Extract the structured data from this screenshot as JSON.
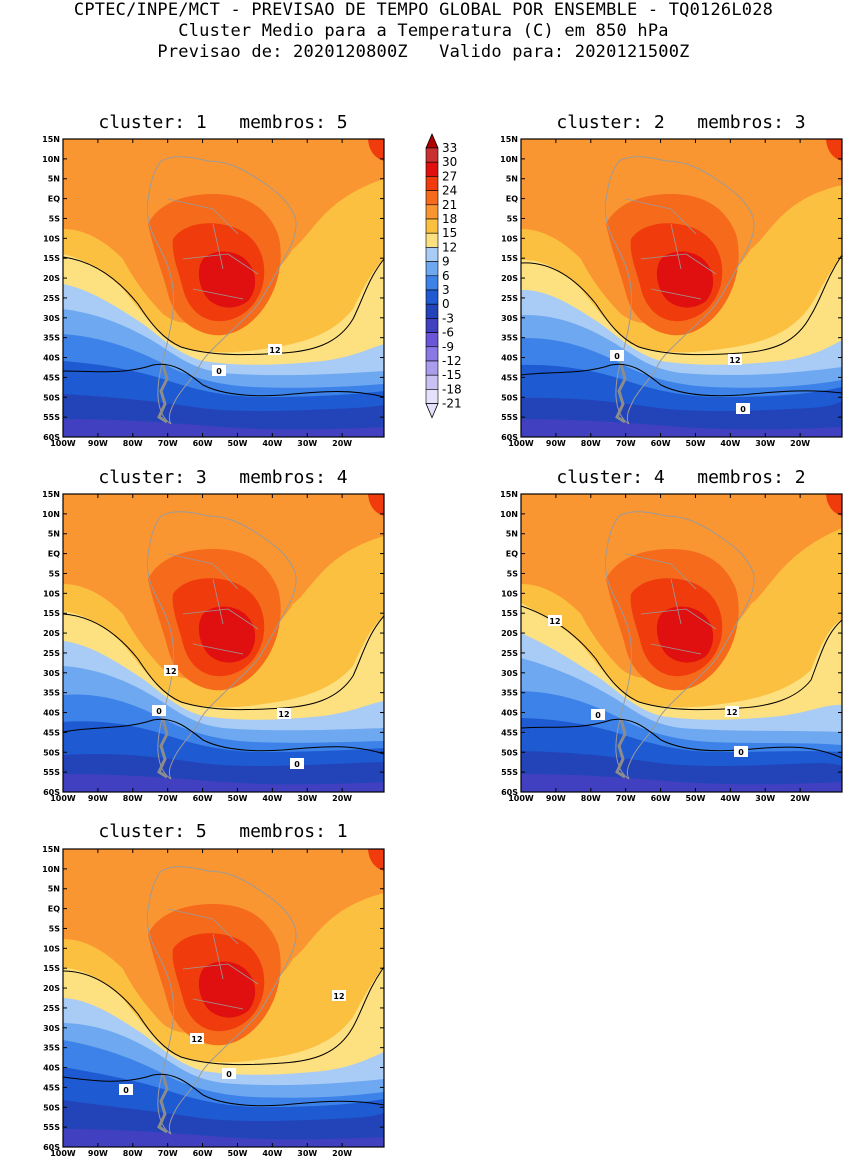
{
  "header": {
    "line1": "CPTEC/INPE/MCT - PREVISAO DE TEMPO GLOBAL POR ENSEMBLE - TQ0126L028",
    "line2": "Cluster Medio para a Temperatura (C) em 850 hPa",
    "line3": "Previsao de: 2020120800Z   Valido para: 2020121500Z"
  },
  "axes": {
    "lat_labels": [
      "15N",
      "10N",
      "5N",
      "EQ",
      "5S",
      "10S",
      "15S",
      "20S",
      "25S",
      "30S",
      "35S",
      "40S",
      "45S",
      "50S",
      "55S",
      "60S"
    ],
    "lon_labels": [
      "100W",
      "90W",
      "80W",
      "70W",
      "60W",
      "50W",
      "40W",
      "30W",
      "20W"
    ]
  },
  "colorbar": {
    "labels": [
      "33",
      "30",
      "27",
      "24",
      "21",
      "18",
      "15",
      "12",
      "9",
      "6",
      "3",
      "0",
      "-3",
      "-6",
      "-9",
      "-12",
      "-15",
      "-18",
      "-21"
    ],
    "colors": [
      "#b00000",
      "#c93030",
      "#e01010",
      "#f03c0c",
      "#f66a1c",
      "#fa9632",
      "#fcc040",
      "#fde080",
      "#a8ccf5",
      "#6ea8f0",
      "#3c82e8",
      "#1e5ad2",
      "#2244b8",
      "#4040c0",
      "#6a55d6",
      "#8c78e4",
      "#ac9cec",
      "#cac0f4",
      "#e6e0fa"
    ]
  },
  "panels": [
    {
      "title": "cluster: 1   membros: 5",
      "labels": [
        "12",
        "0"
      ]
    },
    {
      "title": "cluster: 2   membros: 3",
      "labels": [
        "0",
        "12",
        "0"
      ]
    },
    {
      "title": "cluster: 3   membros: 4",
      "labels": [
        "12",
        "0",
        "12",
        "0"
      ]
    },
    {
      "title": "cluster: 4   membros: 2",
      "labels": [
        "12",
        "0",
        "12",
        "0"
      ]
    },
    {
      "title": "cluster: 5   membros: 1",
      "labels": [
        "12",
        "12",
        "0",
        "0"
      ]
    }
  ]
}
